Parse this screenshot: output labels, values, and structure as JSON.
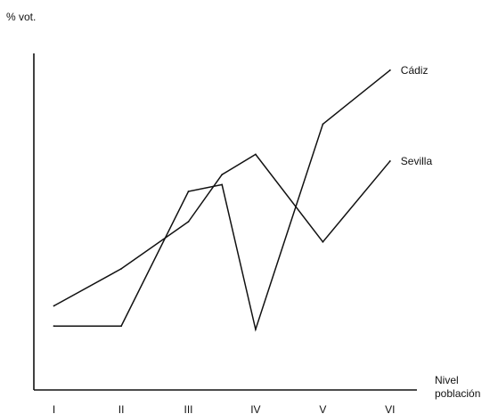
{
  "chart_data": {
    "type": "line",
    "title": "",
    "ylabel": "% vot.",
    "xlabel": [
      "Nivel",
      "población"
    ],
    "categories": [
      "I",
      "II",
      "III",
      "IV",
      "V",
      "VI"
    ],
    "x": [
      1,
      2,
      3,
      3.5,
      4,
      5,
      6
    ],
    "series": [
      {
        "name": "Cádiz",
        "values": [
          19,
          19,
          59,
          61,
          18,
          79,
          95
        ]
      },
      {
        "name": "Sevilla",
        "values": [
          25,
          36,
          50,
          64,
          70,
          44,
          68
        ]
      }
    ],
    "xlim": [
      0.7,
      6.4
    ],
    "ylim": [
      0,
      100
    ],
    "grid": false,
    "legend": "labels at line ends"
  }
}
